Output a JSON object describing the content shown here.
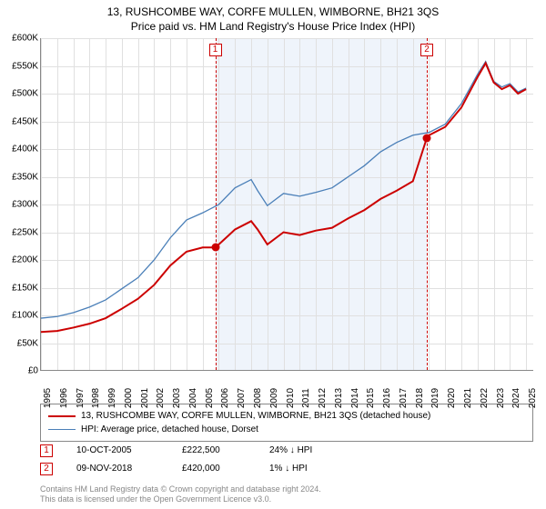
{
  "title": "13, RUSHCOMBE WAY, CORFE MULLEN, WIMBORNE, BH21 3QS",
  "subtitle": "Price paid vs. HM Land Registry's House Price Index (HPI)",
  "chart": {
    "type": "line",
    "ylim": [
      0,
      600000
    ],
    "ytick_step": 50000,
    "yticks": [
      "£0",
      "£50K",
      "£100K",
      "£150K",
      "£200K",
      "£250K",
      "£300K",
      "£350K",
      "£400K",
      "£450K",
      "£500K",
      "£550K",
      "£600K"
    ],
    "xticks": [
      "1995",
      "1996",
      "1997",
      "1998",
      "1999",
      "2000",
      "2001",
      "2002",
      "2003",
      "2004",
      "2005",
      "2006",
      "2007",
      "2008",
      "2009",
      "2010",
      "2011",
      "2012",
      "2013",
      "2014",
      "2015",
      "2016",
      "2017",
      "2018",
      "2019",
      "2020",
      "2021",
      "2022",
      "2023",
      "2024",
      "2025"
    ],
    "xlim": [
      1995,
      2025.5
    ],
    "grid_color": "#e0e0e0",
    "background_color": "#ffffff",
    "series": [
      {
        "name": "price_paid",
        "label": "13, RUSHCOMBE WAY, CORFE MULLEN, WIMBORNE, BH21 3QS (detached house)",
        "color": "#cc0000",
        "width": 2,
        "points": [
          [
            1995,
            70000
          ],
          [
            1996,
            72000
          ],
          [
            1997,
            78000
          ],
          [
            1998,
            85000
          ],
          [
            1999,
            95000
          ],
          [
            2000,
            112000
          ],
          [
            2001,
            130000
          ],
          [
            2002,
            155000
          ],
          [
            2003,
            190000
          ],
          [
            2004,
            215000
          ],
          [
            2005,
            222500
          ],
          [
            2005.78,
            222500
          ],
          [
            2006,
            228000
          ],
          [
            2007,
            255000
          ],
          [
            2008,
            270000
          ],
          [
            2008.4,
            255000
          ],
          [
            2009,
            228000
          ],
          [
            2010,
            250000
          ],
          [
            2011,
            245000
          ],
          [
            2012,
            253000
          ],
          [
            2013,
            258000
          ],
          [
            2014,
            275000
          ],
          [
            2015,
            290000
          ],
          [
            2016,
            310000
          ],
          [
            2017,
            325000
          ],
          [
            2018,
            342000
          ],
          [
            2018.86,
            420000
          ],
          [
            2019,
            425000
          ],
          [
            2020,
            440000
          ],
          [
            2021,
            475000
          ],
          [
            2022,
            530000
          ],
          [
            2022.5,
            555000
          ],
          [
            2023,
            520000
          ],
          [
            2023.5,
            508000
          ],
          [
            2024,
            515000
          ],
          [
            2024.5,
            500000
          ],
          [
            2025,
            508000
          ]
        ]
      },
      {
        "name": "hpi",
        "label": "HPI: Average price, detached house, Dorset",
        "color": "#4a7fb8",
        "width": 1.3,
        "points": [
          [
            1995,
            95000
          ],
          [
            1996,
            98000
          ],
          [
            1997,
            105000
          ],
          [
            1998,
            115000
          ],
          [
            1999,
            128000
          ],
          [
            2000,
            148000
          ],
          [
            2001,
            168000
          ],
          [
            2002,
            200000
          ],
          [
            2003,
            240000
          ],
          [
            2004,
            272000
          ],
          [
            2005,
            285000
          ],
          [
            2006,
            300000
          ],
          [
            2007,
            330000
          ],
          [
            2008,
            345000
          ],
          [
            2008.4,
            325000
          ],
          [
            2009,
            298000
          ],
          [
            2010,
            320000
          ],
          [
            2011,
            315000
          ],
          [
            2012,
            322000
          ],
          [
            2013,
            330000
          ],
          [
            2014,
            350000
          ],
          [
            2015,
            370000
          ],
          [
            2016,
            395000
          ],
          [
            2017,
            412000
          ],
          [
            2018,
            425000
          ],
          [
            2019,
            430000
          ],
          [
            2020,
            445000
          ],
          [
            2021,
            482000
          ],
          [
            2022,
            535000
          ],
          [
            2022.5,
            558000
          ],
          [
            2023,
            522000
          ],
          [
            2023.5,
            512000
          ],
          [
            2024,
            518000
          ],
          [
            2024.5,
            503000
          ],
          [
            2025,
            510000
          ]
        ]
      }
    ],
    "shade": {
      "from": 2005.78,
      "to": 2018.86,
      "color": "#e8f0fa"
    },
    "vlines": [
      {
        "at": 2005.78,
        "color": "#cc0000"
      },
      {
        "at": 2018.86,
        "color": "#cc0000"
      }
    ],
    "markers": [
      {
        "id": "1",
        "x": 2005.78,
        "y": 222500
      },
      {
        "id": "2",
        "x": 2018.86,
        "y": 420000
      }
    ]
  },
  "legend": {
    "items": [
      {
        "color": "#cc0000",
        "label": "13, RUSHCOMBE WAY, CORFE MULLEN, WIMBORNE, BH21 3QS (detached house)"
      },
      {
        "color": "#4a7fb8",
        "label": "HPI: Average price, detached house, Dorset"
      }
    ]
  },
  "transactions": [
    {
      "id": "1",
      "date": "10-OCT-2005",
      "price": "£222,500",
      "delta": "24% ↓ HPI"
    },
    {
      "id": "2",
      "date": "09-NOV-2018",
      "price": "£420,000",
      "delta": "1% ↓ HPI"
    }
  ],
  "footer": {
    "line1": "Contains HM Land Registry data © Crown copyright and database right 2024.",
    "line2": "This data is licensed under the Open Government Licence v3.0."
  }
}
